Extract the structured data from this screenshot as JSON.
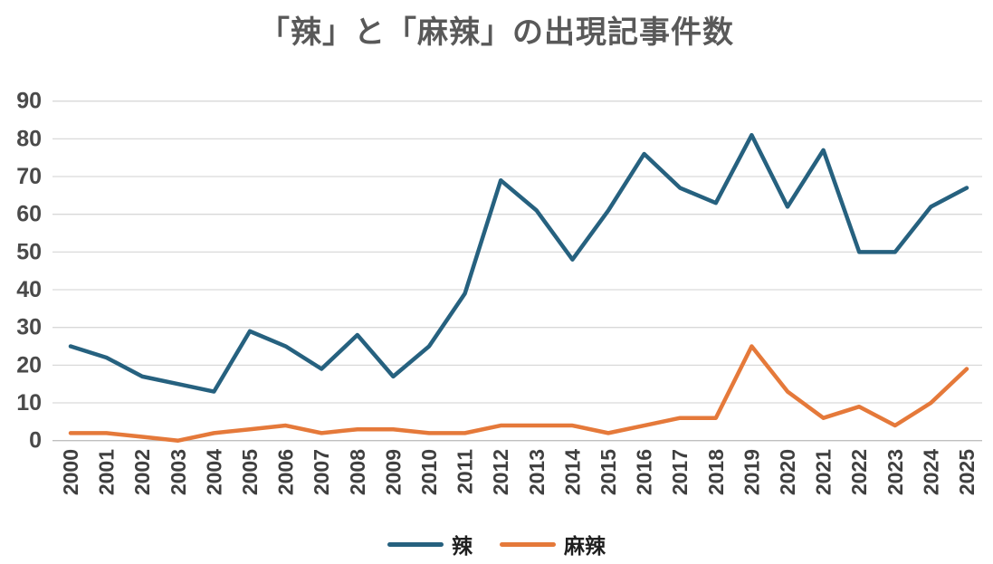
{
  "title": "「辣」と「麻辣」の出現記事件数",
  "chart_data": {
    "type": "line",
    "title": "「辣」と「麻辣」の出現記事件数",
    "x": [
      2000,
      2001,
      2002,
      2003,
      2004,
      2005,
      2006,
      2007,
      2008,
      2009,
      2010,
      2011,
      2012,
      2013,
      2014,
      2015,
      2016,
      2017,
      2018,
      2019,
      2020,
      2021,
      2022,
      2023,
      2024,
      2025
    ],
    "series": [
      {
        "name": "辣",
        "color": "#26617F",
        "values": [
          25,
          22,
          17,
          15,
          13,
          29,
          25,
          19,
          28,
          17,
          25,
          39,
          69,
          61,
          48,
          61,
          76,
          67,
          63,
          81,
          62,
          77,
          50,
          50,
          62,
          67
        ]
      },
      {
        "name": "麻辣",
        "color": "#E5793A",
        "values": [
          2,
          2,
          1,
          0,
          2,
          3,
          4,
          2,
          3,
          3,
          2,
          2,
          4,
          4,
          4,
          2,
          4,
          6,
          6,
          25,
          13,
          6,
          9,
          4,
          10,
          19
        ]
      }
    ],
    "xlabel": "",
    "ylabel": "",
    "ylim": [
      0,
      90
    ],
    "ytick_step": 10,
    "yticks": [
      0,
      10,
      20,
      30,
      40,
      50,
      60,
      70,
      80,
      90
    ],
    "grid": "horizontal",
    "legend_position": "bottom",
    "colors": {
      "background": "#FFFFFF",
      "title": "#595959",
      "y_axis_labels": "#4A4A4A",
      "x_axis_labels": "#3F3F3F",
      "gridline": "#D9D9D9",
      "baseline": "#BFBFBF",
      "legend_text": "#1F1F1F"
    }
  }
}
